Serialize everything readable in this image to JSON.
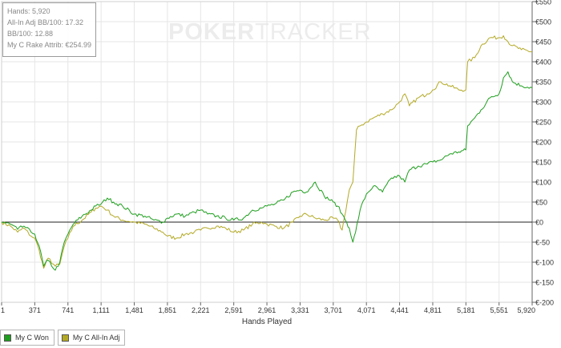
{
  "watermark": {
    "part1": "POKER",
    "part2": "TRACKER"
  },
  "stats": {
    "hands": "Hands: 5,920",
    "allin_bb100": "All-In Adj BB/100: 17.32",
    "bb100": "BB/100: 12.88",
    "rake": "My C Rake Attrib: €254.99"
  },
  "legend": [
    {
      "label": "My C Won",
      "color": "#1e9e1e"
    },
    {
      "label": "My C All-In Adj",
      "color": "#b3a925"
    }
  ],
  "chart_data": {
    "type": "line",
    "title": "",
    "xlabel": "Hands Played",
    "ylabel": "",
    "xlim": [
      1,
      5920
    ],
    "ylim": [
      -200,
      550
    ],
    "x_ticks": [
      1,
      371,
      741,
      1111,
      1481,
      1851,
      2221,
      2591,
      2961,
      3331,
      3701,
      4071,
      4441,
      4811,
      5181,
      5551,
      5920
    ],
    "x_tick_labels": [
      "1",
      "371",
      "741",
      "1,111",
      "1,481",
      "1,851",
      "2,221",
      "2,591",
      "2,961",
      "3,331",
      "3,701",
      "4,071",
      "4,441",
      "4,811",
      "5,181",
      "5,551",
      "5,920"
    ],
    "y_ticks": [
      -200,
      -150,
      -100,
      -50,
      0,
      50,
      100,
      150,
      200,
      250,
      300,
      350,
      400,
      450,
      500,
      550
    ],
    "y_tick_labels": [
      "€-200",
      "€-150",
      "€-100",
      "€-50",
      "€0",
      "€50",
      "€100",
      "€150",
      "€200",
      "€250",
      "€300",
      "€350",
      "€400",
      "€450",
      "€500",
      "€550"
    ],
    "grid": true,
    "legend_position": "bottom-left",
    "series": [
      {
        "name": "My C Won",
        "color": "#1e9e1e",
        "points": [
          [
            1,
            0
          ],
          [
            100,
            -5
          ],
          [
            180,
            -18
          ],
          [
            250,
            -10
          ],
          [
            330,
            -25
          ],
          [
            371,
            -30
          ],
          [
            420,
            -60
          ],
          [
            470,
            -110
          ],
          [
            520,
            -95
          ],
          [
            600,
            -120
          ],
          [
            650,
            -100
          ],
          [
            700,
            -50
          ],
          [
            741,
            -30
          ],
          [
            800,
            -5
          ],
          [
            900,
            15
          ],
          [
            1000,
            30
          ],
          [
            1050,
            40
          ],
          [
            1111,
            45
          ],
          [
            1180,
            60
          ],
          [
            1250,
            50
          ],
          [
            1350,
            40
          ],
          [
            1481,
            20
          ],
          [
            1600,
            15
          ],
          [
            1700,
            5
          ],
          [
            1800,
            0
          ],
          [
            1851,
            10
          ],
          [
            1950,
            20
          ],
          [
            2050,
            15
          ],
          [
            2150,
            25
          ],
          [
            2221,
            30
          ],
          [
            2300,
            20
          ],
          [
            2400,
            15
          ],
          [
            2500,
            10
          ],
          [
            2591,
            5
          ],
          [
            2700,
            10
          ],
          [
            2800,
            30
          ],
          [
            2900,
            35
          ],
          [
            2961,
            40
          ],
          [
            3050,
            45
          ],
          [
            3150,
            55
          ],
          [
            3250,
            75
          ],
          [
            3331,
            80
          ],
          [
            3400,
            75
          ],
          [
            3500,
            100
          ],
          [
            3600,
            65
          ],
          [
            3701,
            50
          ],
          [
            3750,
            40
          ],
          [
            3800,
            20
          ],
          [
            3850,
            0
          ],
          [
            3880,
            -15
          ],
          [
            3920,
            -50
          ],
          [
            3950,
            -25
          ],
          [
            4000,
            30
          ],
          [
            4071,
            70
          ],
          [
            4150,
            90
          ],
          [
            4250,
            75
          ],
          [
            4350,
            110
          ],
          [
            4441,
            115
          ],
          [
            4500,
            100
          ],
          [
            4550,
            130
          ],
          [
            4650,
            140
          ],
          [
            4750,
            145
          ],
          [
            4811,
            150
          ],
          [
            4900,
            155
          ],
          [
            5000,
            170
          ],
          [
            5100,
            175
          ],
          [
            5181,
            180
          ],
          [
            5200,
            240
          ],
          [
            5280,
            260
          ],
          [
            5350,
            280
          ],
          [
            5450,
            310
          ],
          [
            5551,
            320
          ],
          [
            5600,
            360
          ],
          [
            5650,
            375
          ],
          [
            5700,
            350
          ],
          [
            5800,
            340
          ],
          [
            5920,
            335
          ]
        ]
      },
      {
        "name": "My C All-In Adj",
        "color": "#b3a925",
        "points": [
          [
            1,
            0
          ],
          [
            100,
            -10
          ],
          [
            180,
            -25
          ],
          [
            250,
            -15
          ],
          [
            330,
            -35
          ],
          [
            371,
            -40
          ],
          [
            420,
            -70
          ],
          [
            470,
            -115
          ],
          [
            520,
            -90
          ],
          [
            600,
            -110
          ],
          [
            650,
            -105
          ],
          [
            700,
            -60
          ],
          [
            741,
            -40
          ],
          [
            800,
            -10
          ],
          [
            900,
            5
          ],
          [
            1000,
            25
          ],
          [
            1050,
            35
          ],
          [
            1111,
            40
          ],
          [
            1180,
            30
          ],
          [
            1250,
            15
          ],
          [
            1350,
            5
          ],
          [
            1481,
            0
          ],
          [
            1600,
            -5
          ],
          [
            1700,
            -15
          ],
          [
            1800,
            -25
          ],
          [
            1851,
            -35
          ],
          [
            1950,
            -40
          ],
          [
            2050,
            -30
          ],
          [
            2150,
            -25
          ],
          [
            2221,
            -20
          ],
          [
            2300,
            -15
          ],
          [
            2400,
            -10
          ],
          [
            2500,
            -15
          ],
          [
            2591,
            -25
          ],
          [
            2700,
            -20
          ],
          [
            2800,
            -5
          ],
          [
            2900,
            0
          ],
          [
            2961,
            -5
          ],
          [
            3050,
            -10
          ],
          [
            3150,
            -15
          ],
          [
            3250,
            0
          ],
          [
            3331,
            15
          ],
          [
            3400,
            20
          ],
          [
            3500,
            10
          ],
          [
            3600,
            5
          ],
          [
            3701,
            10
          ],
          [
            3750,
            5
          ],
          [
            3800,
            -20
          ],
          [
            3880,
            80
          ],
          [
            3920,
            100
          ],
          [
            3960,
            230
          ],
          [
            4000,
            240
          ],
          [
            4071,
            250
          ],
          [
            4150,
            260
          ],
          [
            4250,
            270
          ],
          [
            4350,
            280
          ],
          [
            4441,
            300
          ],
          [
            4500,
            320
          ],
          [
            4550,
            290
          ],
          [
            4650,
            310
          ],
          [
            4750,
            320
          ],
          [
            4811,
            330
          ],
          [
            4900,
            350
          ],
          [
            5000,
            340
          ],
          [
            5100,
            330
          ],
          [
            5181,
            330
          ],
          [
            5200,
            400
          ],
          [
            5280,
            410
          ],
          [
            5350,
            440
          ],
          [
            5450,
            460
          ],
          [
            5551,
            460
          ],
          [
            5600,
            465
          ],
          [
            5650,
            450
          ],
          [
            5700,
            440
          ],
          [
            5800,
            430
          ],
          [
            5920,
            425
          ]
        ]
      }
    ]
  }
}
